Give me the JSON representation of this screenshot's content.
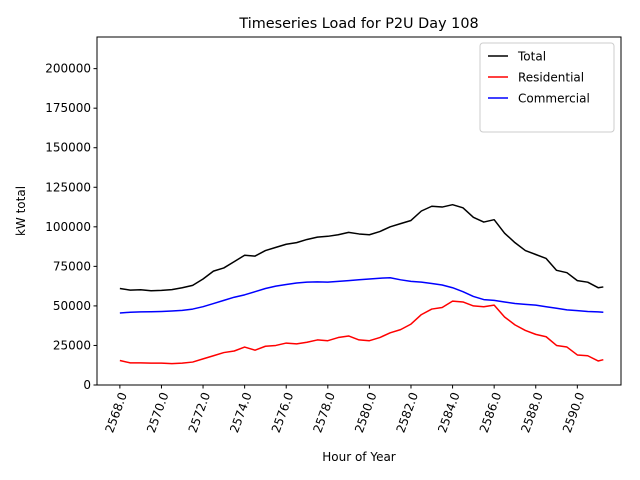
{
  "chart_data": {
    "type": "line",
    "title": "Timeseries Load for P2U   Day 108",
    "xlabel": "Hour of Year",
    "ylabel": "kW total",
    "xlim": [
      2566.9,
      2592.1
    ],
    "ylim": [
      0,
      220000
    ],
    "xticks": [
      2568.0,
      2570.0,
      2572.0,
      2574.0,
      2576.0,
      2578.0,
      2580.0,
      2582.0,
      2584.0,
      2586.0,
      2588.0,
      2590.0
    ],
    "xtick_labels": [
      "2568.0",
      "2570.0",
      "2572.0",
      "2574.0",
      "2576.0",
      "2578.0",
      "2580.0",
      "2582.0",
      "2584.0",
      "2586.0",
      "2588.0",
      "2590.0"
    ],
    "yticks": [
      0,
      25000,
      50000,
      75000,
      100000,
      125000,
      150000,
      175000,
      200000
    ],
    "ytick_labels": [
      "0",
      "25000",
      "50000",
      "75000",
      "100000",
      "125000",
      "150000",
      "175000",
      "200000"
    ],
    "legend_position": "top-right",
    "grid": false,
    "x": [
      2568.0,
      2568.5,
      2569.0,
      2569.5,
      2570.0,
      2570.5,
      2571.0,
      2571.5,
      2572.0,
      2572.5,
      2573.0,
      2573.5,
      2574.0,
      2574.5,
      2575.0,
      2575.5,
      2576.0,
      2576.5,
      2577.0,
      2577.5,
      2578.0,
      2578.5,
      2579.0,
      2579.5,
      2580.0,
      2580.5,
      2581.0,
      2581.5,
      2582.0,
      2582.5,
      2583.0,
      2583.5,
      2584.0,
      2584.5,
      2585.0,
      2585.5,
      2586.0,
      2586.5,
      2587.0,
      2587.5,
      2588.0,
      2588.5,
      2589.0,
      2589.5,
      2590.0,
      2590.5,
      2591.0,
      2591.25
    ],
    "series": [
      {
        "name": "Total",
        "color": "#000000",
        "values": [
          61000,
          60000,
          60200,
          59600,
          59800,
          60300,
          61500,
          63000,
          67000,
          72000,
          74000,
          78000,
          82000,
          81500,
          85000,
          87000,
          89000,
          90000,
          92000,
          93500,
          94000,
          95000,
          96500,
          95500,
          95000,
          97000,
          100000,
          102000,
          104000,
          110000,
          113000,
          112500,
          114000,
          112000,
          106000,
          103000,
          104500,
          96000,
          90000,
          85000,
          82500,
          80000,
          72500,
          71000,
          66000,
          65000,
          61500,
          62000
        ]
      },
      {
        "name": "Residential",
        "color": "#ff0000",
        "values": [
          15500,
          14000,
          14000,
          13800,
          13800,
          13500,
          13800,
          14500,
          16500,
          18500,
          20500,
          21500,
          24000,
          22000,
          24500,
          25000,
          26500,
          26000,
          27000,
          28500,
          28000,
          30000,
          31000,
          28500,
          28000,
          30000,
          33000,
          35000,
          38500,
          44500,
          48000,
          49000,
          53000,
          52500,
          50000,
          49500,
          50500,
          43000,
          38000,
          34500,
          32000,
          30500,
          25000,
          24000,
          19000,
          18500,
          15200,
          16000
        ]
      },
      {
        "name": "Commercial",
        "color": "#0000ff",
        "values": [
          45500,
          46000,
          46200,
          46300,
          46500,
          46800,
          47200,
          48000,
          49500,
          51500,
          53500,
          55500,
          57000,
          59000,
          61000,
          62500,
          63500,
          64500,
          65000,
          65200,
          65000,
          65500,
          66000,
          66500,
          67000,
          67500,
          67800,
          66500,
          65500,
          65000,
          64200,
          63200,
          61500,
          59000,
          56000,
          54000,
          53500,
          52500,
          51500,
          51000,
          50500,
          49500,
          48500,
          47500,
          47000,
          46500,
          46200,
          46000
        ]
      }
    ]
  }
}
